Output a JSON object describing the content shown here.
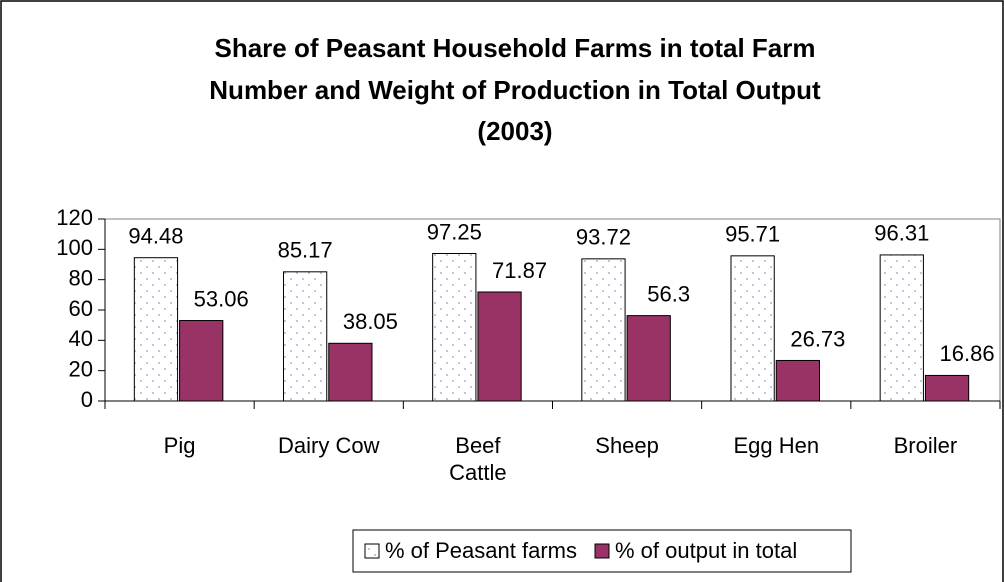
{
  "chart_data": {
    "type": "bar",
    "title_lines": [
      "Share of Peasant Household Farms in total Farm",
      "Number and Weight of Production in Total Output",
      "(2003)"
    ],
    "categories": [
      "Pig",
      "Dairy Cow",
      "Beef Cattle",
      "Sheep",
      "Egg Hen",
      "Broiler"
    ],
    "series": [
      {
        "name": "% of Peasant farms",
        "color": "#ffffff",
        "values": [
          94.48,
          85.17,
          97.25,
          93.72,
          95.71,
          96.31
        ]
      },
      {
        "name": "% of output in total",
        "color": "#993366",
        "values": [
          53.06,
          38.05,
          71.87,
          56.3,
          26.73,
          16.86
        ]
      }
    ],
    "ylim": [
      0,
      120
    ],
    "yticks": [
      0,
      20,
      40,
      60,
      80,
      100,
      120
    ],
    "grid": false,
    "legend": "bottom"
  }
}
